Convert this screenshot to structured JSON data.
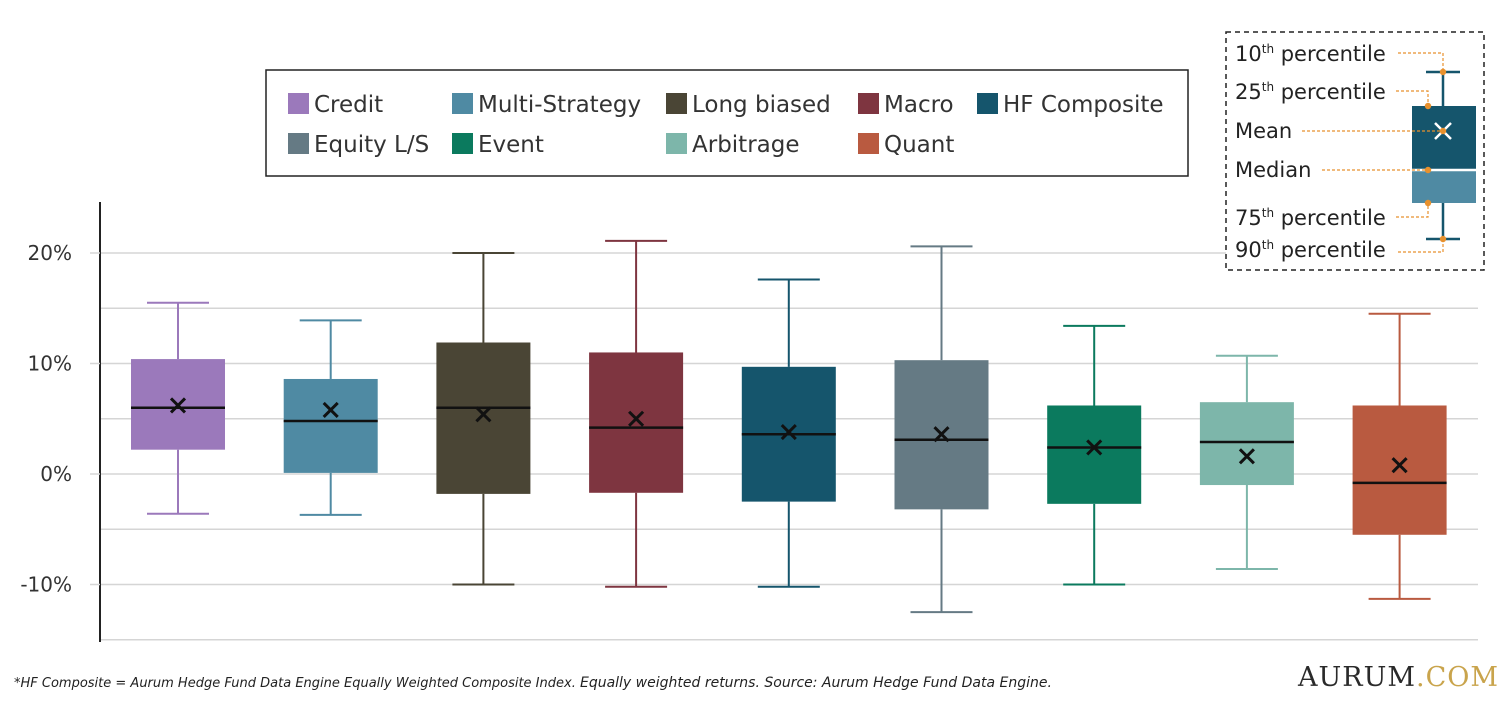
{
  "chart_data": {
    "type": "box",
    "title": "",
    "xlabel": "",
    "ylabel": "",
    "ylim": [
      -15,
      25
    ],
    "yticks": [
      {
        "value": 20,
        "label": "20%"
      },
      {
        "value": 10,
        "label": "10%"
      },
      {
        "value": 0,
        "label": "0%"
      },
      {
        "value": -10,
        "label": "-10%"
      }
    ],
    "grid": true,
    "legend_position": "top-center",
    "series": [
      {
        "name": "Credit",
        "color": "#9b79bb",
        "p10": -3.6,
        "p25": 2.2,
        "median": 6.0,
        "mean": 6.2,
        "p75": 10.4,
        "p90": 15.5
      },
      {
        "name": "Multi-Strategy",
        "color": "#4f8aa3",
        "p10": -3.7,
        "p25": 0.1,
        "median": 4.8,
        "mean": 5.8,
        "p75": 8.6,
        "p90": 13.9
      },
      {
        "name": "Long biased",
        "color": "#4a4535",
        "p10": -10.0,
        "p25": -1.8,
        "median": 6.0,
        "mean": 5.4,
        "p75": 11.9,
        "p90": 20.0
      },
      {
        "name": "Macro",
        "color": "#7e3540",
        "p10": -10.2,
        "p25": -1.7,
        "median": 4.2,
        "mean": 5.0,
        "p75": 11.0,
        "p90": 21.1
      },
      {
        "name": "HF Composite",
        "color": "#15556c",
        "p10": -10.2,
        "p25": -2.5,
        "median": 3.6,
        "mean": 3.8,
        "p75": 9.7,
        "p90": 17.6
      },
      {
        "name": "Equity L/S",
        "color": "#657a84",
        "p10": -12.5,
        "p25": -3.2,
        "median": 3.1,
        "mean": 3.6,
        "p75": 10.3,
        "p90": 20.6
      },
      {
        "name": "Event",
        "color": "#0b7a5e",
        "p10": -10.0,
        "p25": -2.7,
        "median": 2.4,
        "mean": 2.4,
        "p75": 6.2,
        "p90": 13.4
      },
      {
        "name": "Arbitrage",
        "color": "#7db6aa",
        "p10": -8.6,
        "p25": -1.0,
        "median": 2.9,
        "mean": 1.6,
        "p75": 6.5,
        "p90": 10.7
      },
      {
        "name": "Quant",
        "color": "#b95a40",
        "p10": -11.3,
        "p25": -5.5,
        "median": -0.8,
        "mean": 0.8,
        "p75": 6.2,
        "p90": 14.5
      }
    ],
    "legend_order": [
      "Credit",
      "Multi-Strategy",
      "Long biased",
      "Macro",
      "HF Composite",
      "Equity L/S",
      "Event",
      "Arbitrage",
      "Quant"
    ]
  },
  "key": {
    "p10": {
      "base": "10",
      "sup": "th",
      "rest": " percentile"
    },
    "p25": {
      "base": "25",
      "sup": "th",
      "rest": " percentile"
    },
    "mean": {
      "label": "Mean"
    },
    "median": {
      "label": "Median"
    },
    "p75": {
      "base": "75",
      "sup": "th",
      "rest": " percentile"
    },
    "p90": {
      "base": "90",
      "sup": "th",
      "rest": " percentile"
    },
    "box_color_top": "#15556c",
    "box_color_bottom": "#4f8aa3",
    "leader_color": "#e8912d"
  },
  "footnote": {
    "part1": "*HF Composite = Aurum Hedge Fund Data Engine Equally Weighted Composite Index. ",
    "part2": "Equally weighted returns. Source: Aurum Hedge Fund Data Engine."
  },
  "brand": {
    "name": "AURUM",
    "suffix": ".COM"
  }
}
